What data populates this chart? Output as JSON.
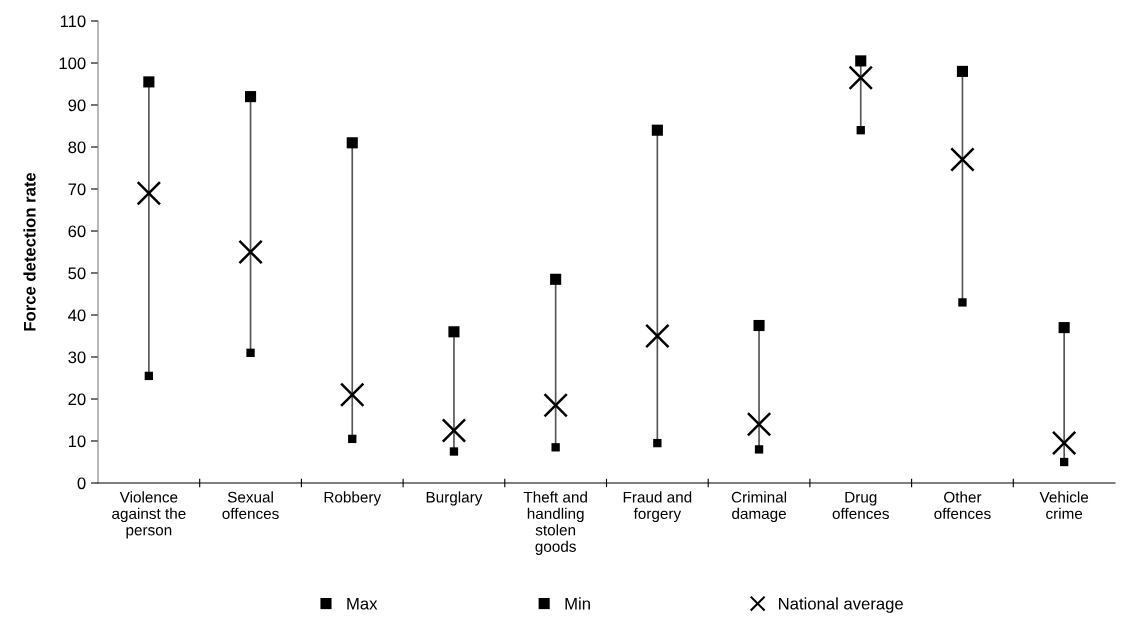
{
  "chart_data": {
    "type": "scatter",
    "ylabel": "Force detection rate",
    "categories": [
      "Violence\nagainst the\nperson",
      "Sexual\noffences",
      "Robbery",
      "Burglary",
      "Theft and\nhandling\nstolen\ngoods",
      "Fraud and\nforgery",
      "Criminal\ndamage",
      "Drug\noffences",
      "Other\noffences",
      "Vehicle\ncrime"
    ],
    "series": [
      {
        "name": "Max",
        "color": "#000000",
        "marker": "square",
        "values": [
          95.5,
          92,
          81,
          36,
          48.5,
          84,
          37.5,
          100.5,
          98,
          37
        ]
      },
      {
        "name": "Min",
        "color": "#000000",
        "marker": "square",
        "values": [
          25.5,
          31,
          10.5,
          7.5,
          8.5,
          9.5,
          8,
          84,
          43,
          5
        ]
      },
      {
        "name": "National average",
        "color": "#000000",
        "marker": "cross",
        "values": [
          69,
          55,
          21,
          12.5,
          18.5,
          35,
          14,
          96.5,
          77,
          9.5
        ]
      }
    ],
    "ylim": [
      0,
      110
    ],
    "yticks": [
      0,
      10,
      20,
      30,
      40,
      50,
      60,
      70,
      80,
      90,
      100,
      110
    ],
    "grid": false,
    "legend": "bottom"
  }
}
